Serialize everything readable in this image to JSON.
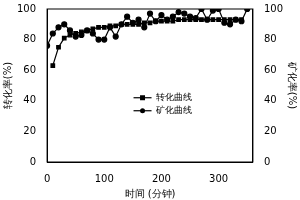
{
  "chart_data": {
    "type": "line",
    "x_label": "时间 (分钟)",
    "y_label": "转化率(%)",
    "y2_label": "矿化率(%)",
    "x": [
      0,
      10,
      20,
      30,
      40,
      50,
      60,
      70,
      80,
      90,
      100,
      110,
      120,
      130,
      140,
      150,
      160,
      170,
      180,
      190,
      200,
      210,
      220,
      230,
      240,
      250,
      260,
      270,
      280,
      290,
      300,
      310,
      320,
      330,
      340,
      350
    ],
    "series": [
      {
        "name": "转化曲线",
        "color": "#000000",
        "marker": "square",
        "axis": "y",
        "values": [
          null,
          63,
          75,
          81,
          83,
          84,
          85,
          86,
          87,
          88,
          88,
          89,
          89,
          90,
          90,
          90,
          90,
          91,
          91,
          92,
          92,
          92,
          92,
          93,
          93,
          93,
          93,
          93,
          93,
          93,
          93,
          93,
          93,
          93,
          93,
          null
        ]
      },
      {
        "name": "矿化曲线",
        "color": "#000000",
        "marker": "circle",
        "axis": "y2",
        "values": [
          76,
          84,
          88,
          90,
          86,
          82,
          83,
          86,
          84,
          80,
          80,
          88,
          82,
          90,
          95,
          91,
          93,
          88,
          97,
          92,
          96,
          93,
          95,
          98,
          97,
          95,
          94,
          100,
          93,
          99,
          100,
          91,
          90,
          93,
          92,
          100
        ]
      }
    ],
    "xlim": [
      0,
      360
    ],
    "xticks": [
      0,
      100,
      200,
      300
    ],
    "ylim": [
      0,
      100
    ],
    "yticks": [
      0,
      20,
      40,
      60,
      80,
      100
    ],
    "y2lim": [
      0,
      100
    ],
    "y2ticks": [
      0,
      20,
      40,
      60,
      80,
      100
    ],
    "grid": false,
    "legend": "center right"
  }
}
